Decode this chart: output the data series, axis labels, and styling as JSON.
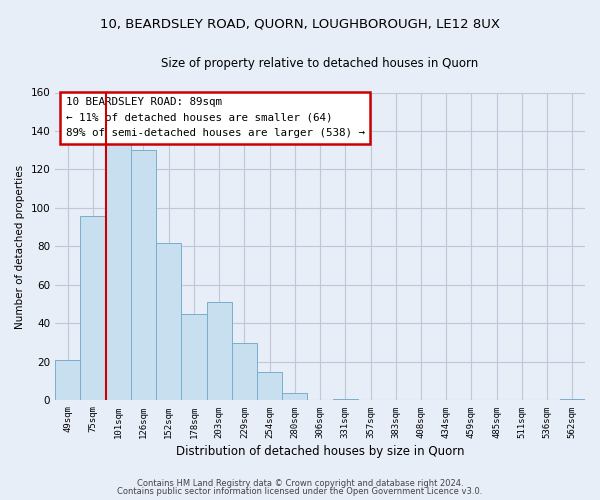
{
  "title_line1": "10, BEARDSLEY ROAD, QUORN, LOUGHBOROUGH, LE12 8UX",
  "title_line2": "Size of property relative to detached houses in Quorn",
  "xlabel": "Distribution of detached houses by size in Quorn",
  "ylabel": "Number of detached properties",
  "bar_labels": [
    "49sqm",
    "75sqm",
    "101sqm",
    "126sqm",
    "152sqm",
    "178sqm",
    "203sqm",
    "229sqm",
    "254sqm",
    "280sqm",
    "306sqm",
    "331sqm",
    "357sqm",
    "383sqm",
    "408sqm",
    "434sqm",
    "459sqm",
    "485sqm",
    "511sqm",
    "536sqm",
    "562sqm"
  ],
  "bar_values": [
    21,
    96,
    133,
    130,
    82,
    45,
    51,
    30,
    15,
    4,
    0,
    1,
    0,
    0,
    0,
    0,
    0,
    0,
    0,
    0,
    1
  ],
  "bar_color": "#c8dff0",
  "bar_edge_color": "#7aaecc",
  "vline_x_index": 1.5,
  "vline_color": "#cc0000",
  "annotation_box_text": "10 BEARDSLEY ROAD: 89sqm\n← 11% of detached houses are smaller (64)\n89% of semi-detached houses are larger (538) →",
  "ylim": [
    0,
    160
  ],
  "yticks": [
    0,
    20,
    40,
    60,
    80,
    100,
    120,
    140,
    160
  ],
  "footer_line1": "Contains HM Land Registry data © Crown copyright and database right 2024.",
  "footer_line2": "Contains public sector information licensed under the Open Government Licence v3.0.",
  "bg_color": "#e8eef8",
  "plot_bg_color": "#e8eef8",
  "grid_color": "#c0c8d8"
}
